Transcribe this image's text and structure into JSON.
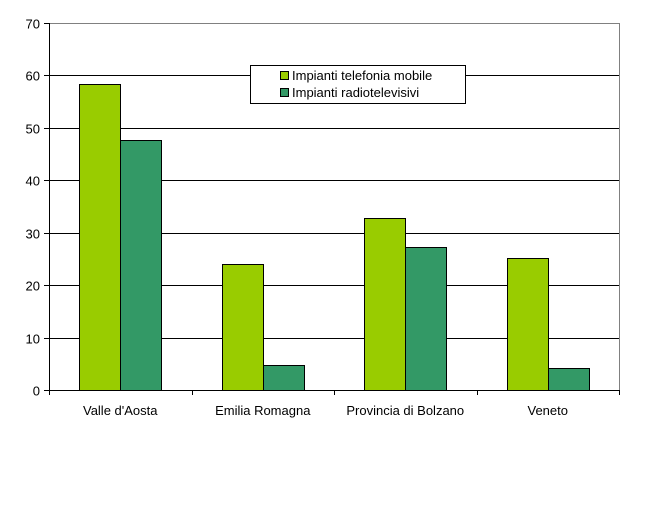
{
  "chart_data": {
    "type": "bar",
    "title": "",
    "xlabel": "",
    "ylabel": "",
    "categories": [
      "Valle d'Aosta",
      "Emilia Romagna",
      "Provincia di Bolzano",
      "Veneto"
    ],
    "series": [
      {
        "name": "Impianti telefonia mobile",
        "color": "#99CC00",
        "values": [
          58.4,
          24.0,
          32.8,
          25.2
        ]
      },
      {
        "name": "Impianti radiotelevisivi",
        "color": "#339966",
        "values": [
          47.7,
          4.8,
          27.3,
          4.2
        ]
      }
    ],
    "ylim": [
      0,
      70
    ],
    "yticks": [
      0,
      10,
      20,
      30,
      40,
      50,
      60,
      70
    ],
    "grid": true,
    "legend_position": "top-center-inside"
  }
}
